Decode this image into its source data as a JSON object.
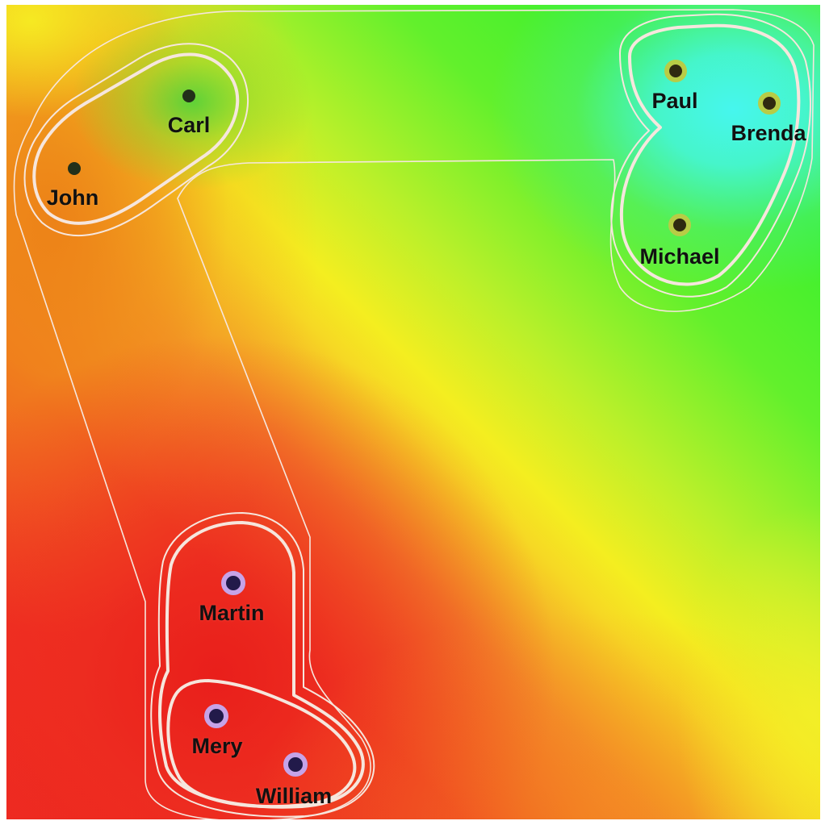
{
  "colors": {
    "contour": "#f6e6dd",
    "dot_dark": "#22301a",
    "dot_purple_ring": "#c6a3e8",
    "dot_purple_fill": "#221a4a",
    "dot_olive_ring": "#b8cc46",
    "dot_olive_fill": "#2f2a10",
    "red": "#f0302a",
    "orange": "#f08c1e",
    "yellow": "#f6f222",
    "green": "#3cf028",
    "cyan": "#3cf6f0"
  },
  "groups": [
    {
      "name": "top-left",
      "members": [
        "John",
        "Carl"
      ]
    },
    {
      "name": "top-right",
      "members": [
        "Paul",
        "Brenda",
        "Michael"
      ]
    },
    {
      "name": "bottom-left",
      "members": [
        "Martin",
        "Mery",
        "William"
      ]
    }
  ],
  "nodes": [
    {
      "id": "john",
      "label": "John",
      "marker": "plain"
    },
    {
      "id": "carl",
      "label": "Carl",
      "marker": "plain"
    },
    {
      "id": "paul",
      "label": "Paul",
      "marker": "olive"
    },
    {
      "id": "brenda",
      "label": "Brenda",
      "marker": "olive"
    },
    {
      "id": "michael",
      "label": "Michael",
      "marker": "olive"
    },
    {
      "id": "martin",
      "label": "Martin",
      "marker": "purple"
    },
    {
      "id": "mery",
      "label": "Mery",
      "marker": "purple"
    },
    {
      "id": "william",
      "label": "William",
      "marker": "purple"
    }
  ]
}
